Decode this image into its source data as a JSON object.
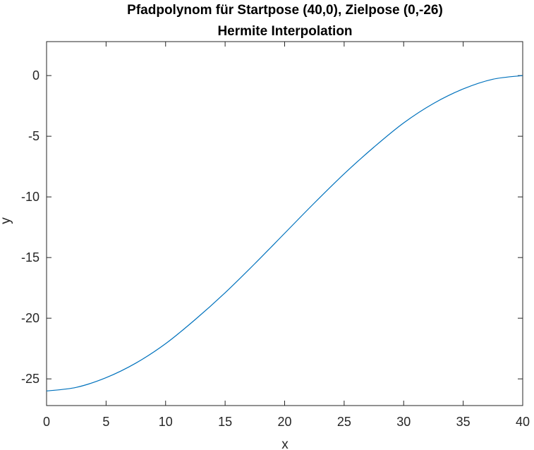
{
  "chart_data": {
    "type": "line",
    "title": [
      "Pfadpolynom für Startpose (40,0), Zielpose (0,-26)",
      "Hermite Interpolation"
    ],
    "xlabel": "x",
    "ylabel": "y",
    "xlim": [
      0,
      40
    ],
    "ylim": [
      -27.2,
      2.8
    ],
    "grid": false,
    "x_ticks": [
      0,
      5,
      10,
      15,
      20,
      25,
      30,
      35,
      40
    ],
    "x_tick_labels": [
      "0",
      "5",
      "10",
      "15",
      "20",
      "25",
      "30",
      "35",
      "40"
    ],
    "y_ticks": [
      0,
      -5,
      -10,
      -15,
      -20,
      -25
    ],
    "y_tick_labels": [
      "0",
      "-5",
      "-10",
      "-15",
      "-20",
      "-25"
    ],
    "series": [
      {
        "color": "#0072bd",
        "x": [
          0,
          2.5,
          5,
          7.5,
          10,
          12.5,
          15,
          17.5,
          20,
          22.5,
          25,
          27.5,
          30,
          32.5,
          35,
          37.5,
          40
        ],
        "y": [
          -26,
          -25.7,
          -24.9,
          -23.7,
          -22.1,
          -20.1,
          -17.9,
          -15.5,
          -13.0,
          -10.5,
          -8.1,
          -5.9,
          -3.9,
          -2.3,
          -1.1,
          -0.3,
          0
        ]
      }
    ]
  }
}
